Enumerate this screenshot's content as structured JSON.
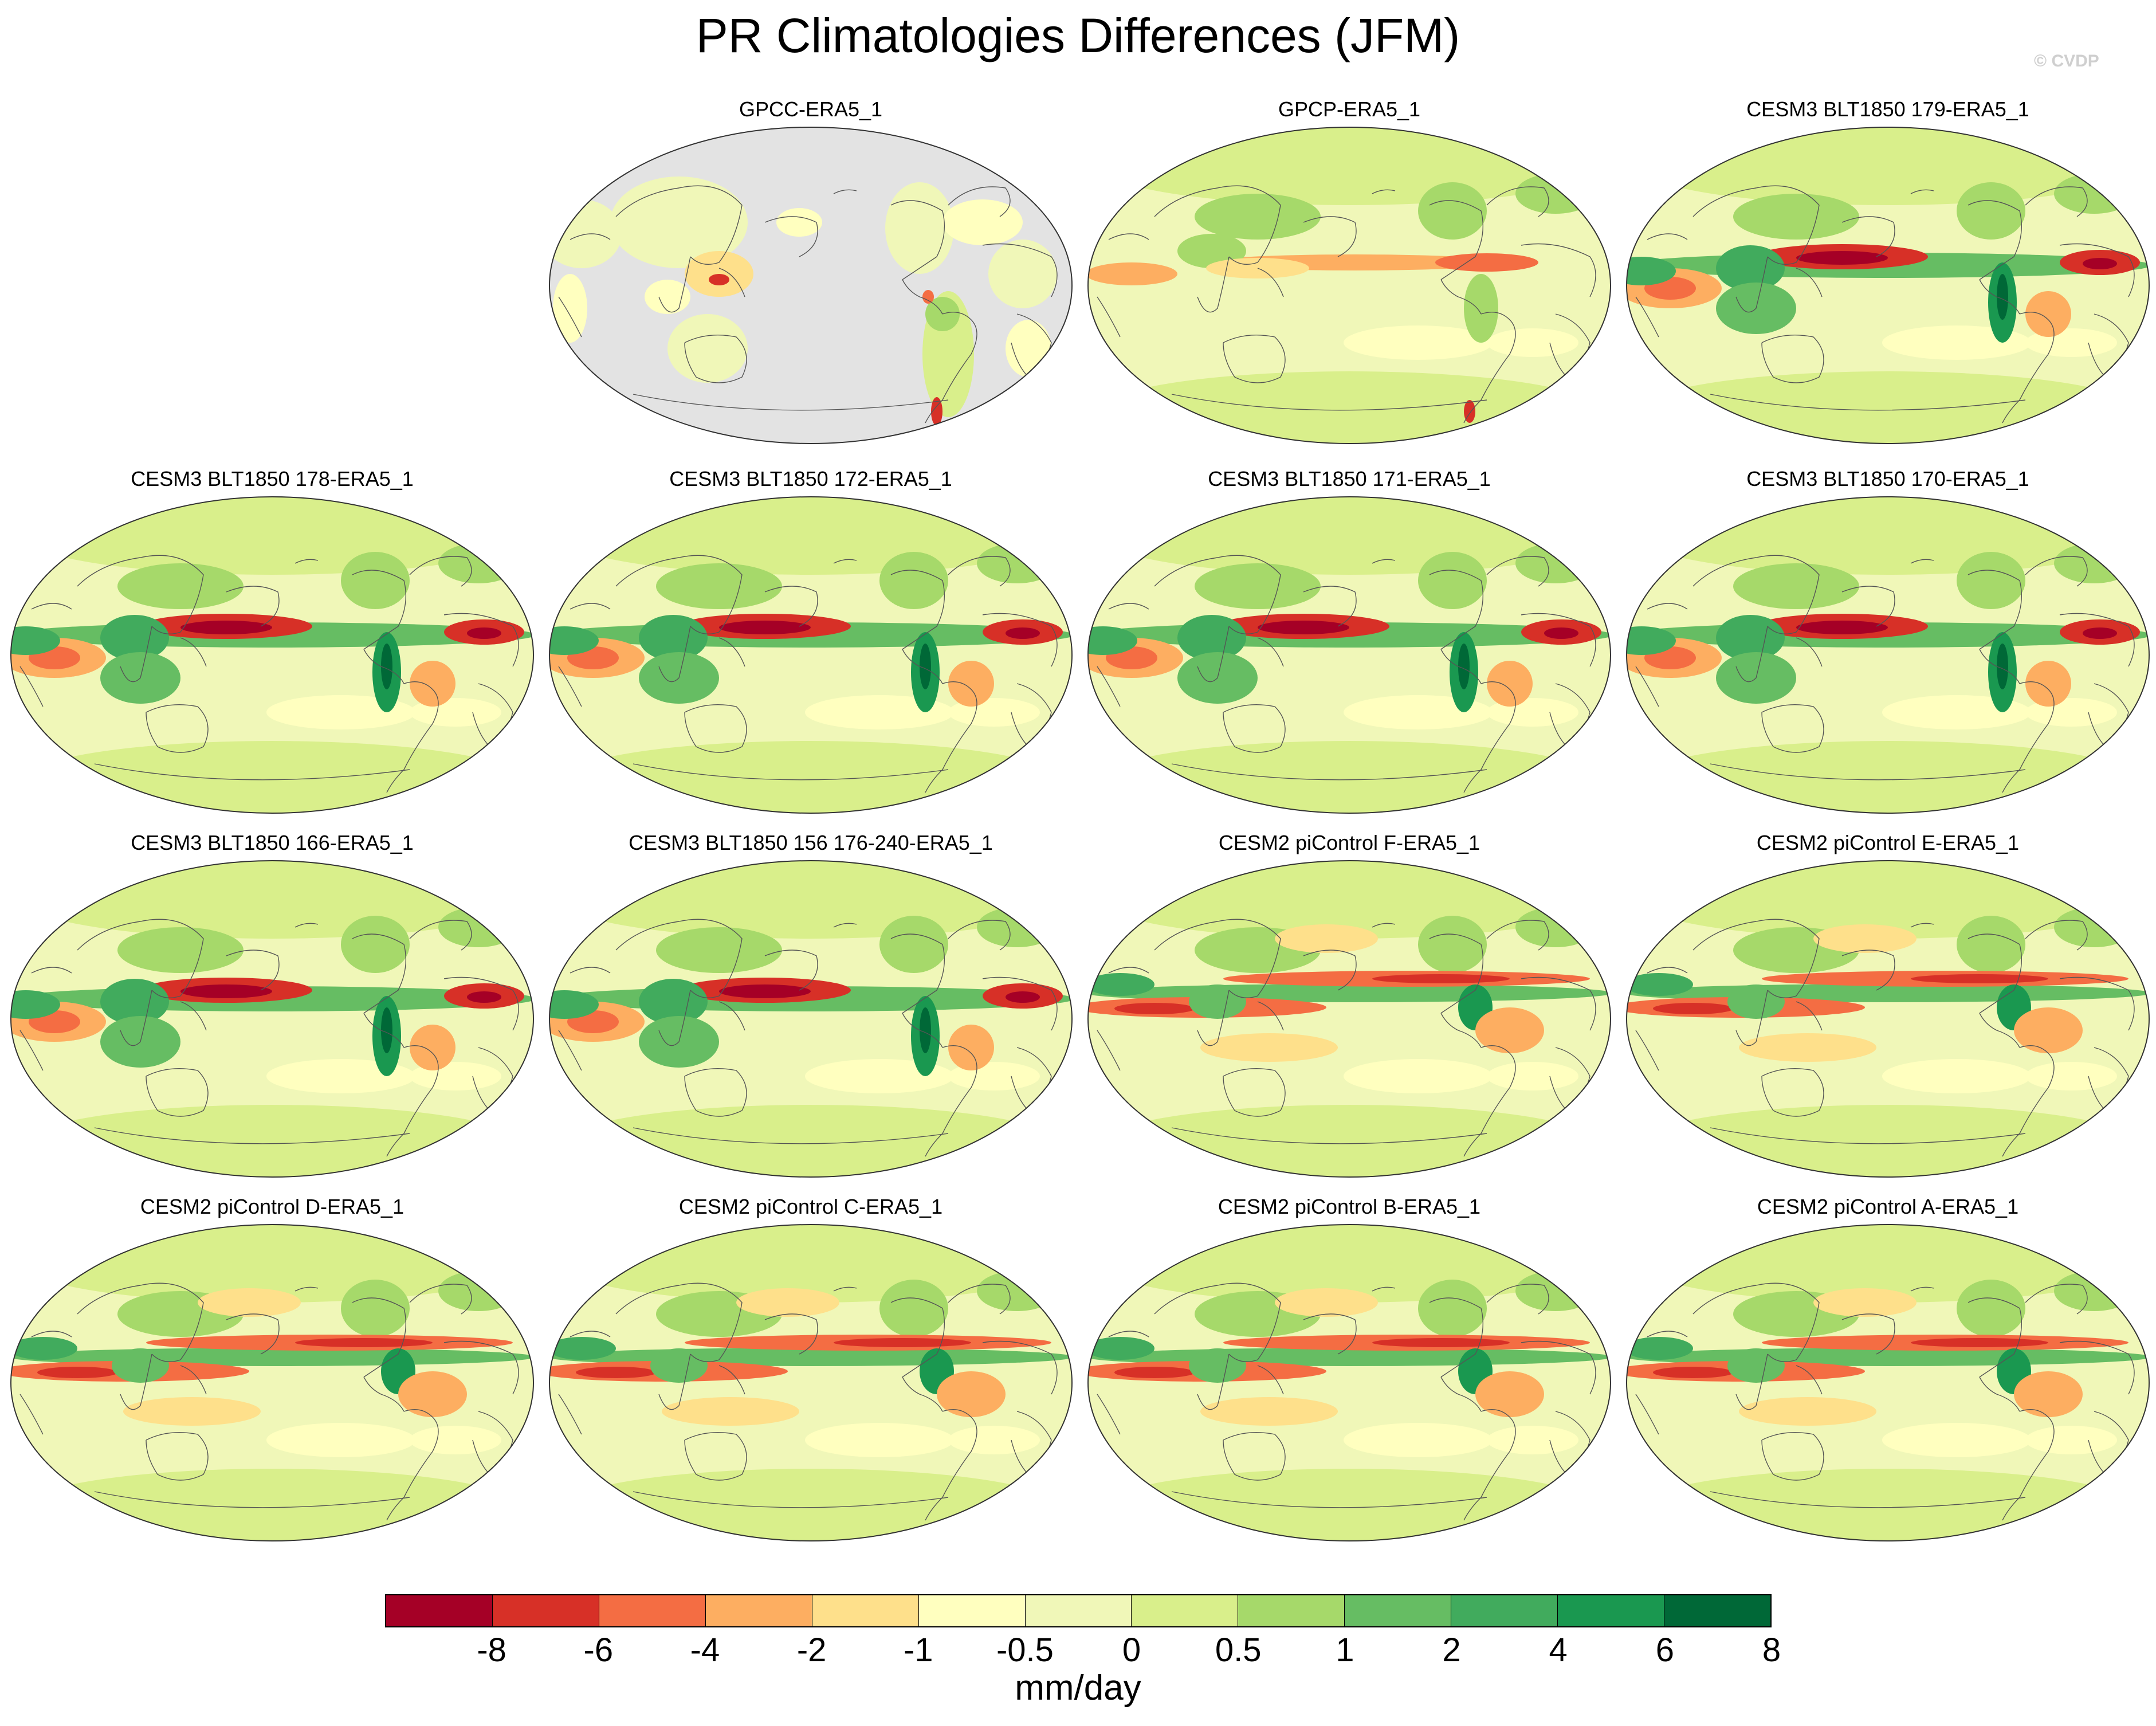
{
  "title": "PR Climatologies Differences (JFM)",
  "watermark": "© CVDP",
  "colors": {
    "colorbar": [
      "#a50026",
      "#d73027",
      "#f46d43",
      "#fdae61",
      "#fee08b",
      "#ffffbf",
      "#f0f7b8",
      "#d9ef8b",
      "#a6d96a",
      "#66bd63",
      "#41ab5d",
      "#1a9850",
      "#006837"
    ],
    "land_missing": "#e3e3e3",
    "coast": "#555555"
  },
  "colorbar": {
    "labels": [
      "-8",
      "-6",
      "-4",
      "-2",
      "-1",
      "-0.5",
      "0",
      "0.5",
      "1",
      "2",
      "4",
      "6",
      "8"
    ],
    "units": "mm/day"
  },
  "panels": [
    {
      "title": "GPCC-ERA5_1",
      "style": "land"
    },
    {
      "title": "GPCP-ERA5_1",
      "style": "obs"
    },
    {
      "title": "CESM3 BLT1850 179-ERA5_1",
      "style": "cesm3"
    },
    {
      "title": "CESM3 BLT1850 178-ERA5_1",
      "style": "cesm3"
    },
    {
      "title": "CESM3 BLT1850 172-ERA5_1",
      "style": "cesm3"
    },
    {
      "title": "CESM3 BLT1850 171-ERA5_1",
      "style": "cesm3"
    },
    {
      "title": "CESM3 BLT1850 170-ERA5_1",
      "style": "cesm3"
    },
    {
      "title": "CESM3 BLT1850 166-ERA5_1",
      "style": "cesm3"
    },
    {
      "title": "CESM3 BLT1850 156 176-240-ERA5_1",
      "style": "cesm3"
    },
    {
      "title": "CESM2 piControl F-ERA5_1",
      "style": "cesm2"
    },
    {
      "title": "CESM2 piControl E-ERA5_1",
      "style": "cesm2"
    },
    {
      "title": "CESM2 piControl D-ERA5_1",
      "style": "cesm2"
    },
    {
      "title": "CESM2 piControl C-ERA5_1",
      "style": "cesm2"
    },
    {
      "title": "CESM2 piControl B-ERA5_1",
      "style": "cesm2"
    },
    {
      "title": "CESM2 piControl A-ERA5_1",
      "style": "cesm2"
    }
  ]
}
